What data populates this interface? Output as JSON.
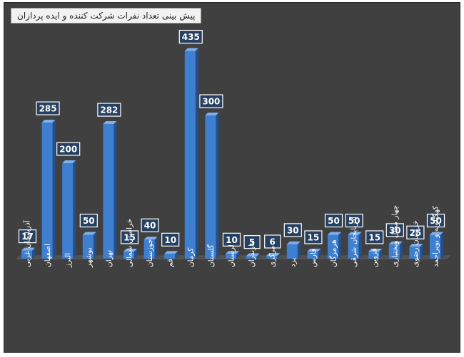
{
  "chart_data": {
    "type": "bar",
    "title": "پیش بینی تعداد نفرات شرکت کننده و ایده پردازان",
    "categories": [
      "آذربایجان غربی",
      "اصفهان",
      "البرز",
      "بوشهر",
      "تهران",
      "خراسان شمالی",
      "خوزستان",
      "قم",
      "کرمان",
      "گلستان",
      "لرستان",
      "مازندران",
      "مرکزی",
      "یزد",
      "فارس",
      "هرمزگان",
      "آذربایجان شرقی",
      "قزوین",
      "چهار محال وبختیاری",
      "خراسان رضوی",
      "کهگیلویه و بویراحمد"
    ],
    "values": [
      17,
      285,
      200,
      50,
      282,
      15,
      40,
      10,
      435,
      300,
      10,
      5,
      6,
      30,
      15,
      50,
      50,
      15,
      30,
      25,
      50
    ],
    "xlabel": "",
    "ylabel": "",
    "grid": false,
    "legend": "none",
    "colors": {
      "background": "#404040",
      "bar_front": "#3f7fcf",
      "bar_side": "#234f8f",
      "bar_top": "#7fb0ec",
      "label_box": "#254061",
      "label_border": "#ffffff",
      "label_text": "#ffffff",
      "axis_text": "#ffffff"
    }
  }
}
